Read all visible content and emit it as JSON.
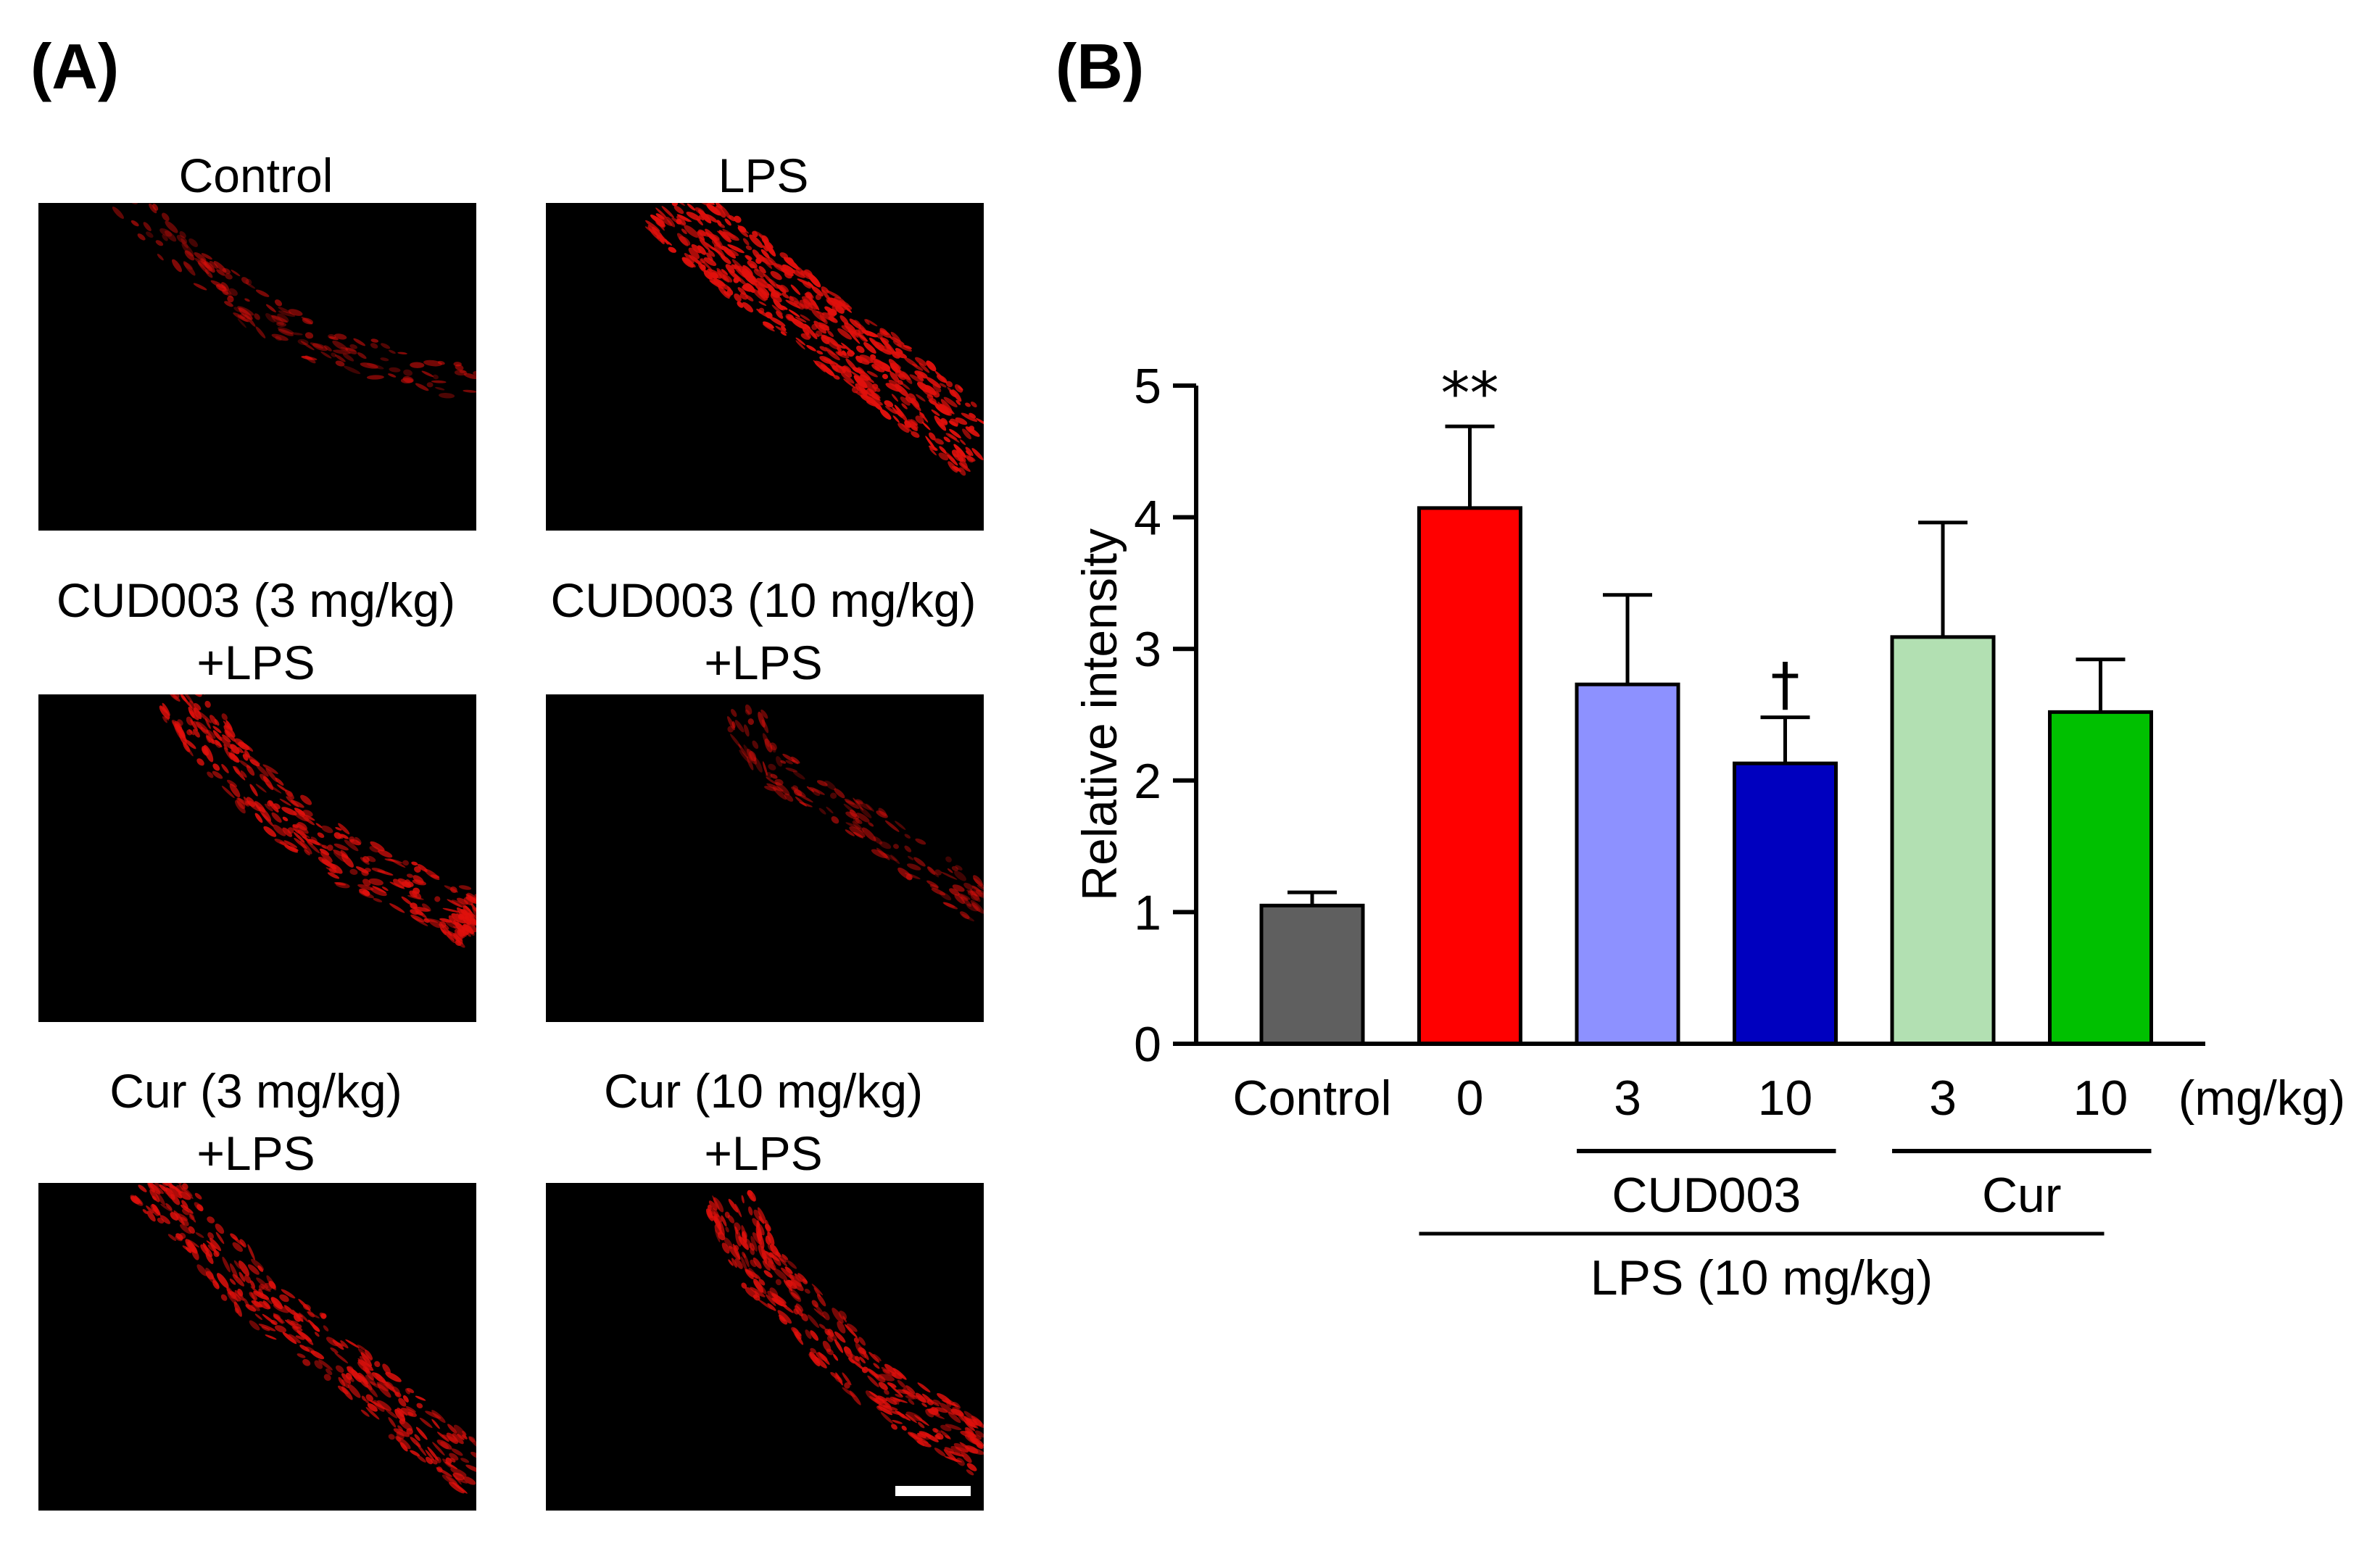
{
  "panels": {
    "a_label": "(A)",
    "b_label": "(B)"
  },
  "micrographs": [
    {
      "title": "Control",
      "title_line2": "",
      "signal": "weak"
    },
    {
      "title": "LPS",
      "title_line2": "",
      "signal": "strong"
    },
    {
      "title": "CUD003 (3 mg/kg)",
      "title_line2": "+LPS",
      "signal": "moderate"
    },
    {
      "title": "CUD003 (10 mg/kg)",
      "title_line2": "+LPS",
      "signal": "weak"
    },
    {
      "title": "Cur (3 mg/kg)",
      "title_line2": "+LPS",
      "signal": "moderate"
    },
    {
      "title": "Cur (10 mg/kg)",
      "title_line2": "+LPS",
      "signal": "moderate"
    }
  ],
  "colors": {
    "fluorescence": "#e0100c",
    "background": "#000000",
    "bars": [
      "#5f5f5f",
      "#ff0000",
      "#8d91ff",
      "#0000bf",
      "#b2e0b2",
      "#00c000"
    ]
  },
  "chart_data": {
    "type": "bar",
    "ylabel": "Relative intensity",
    "ylim": [
      0,
      5
    ],
    "yticks": [
      0,
      1,
      2,
      3,
      4,
      5
    ],
    "categories": [
      "Control",
      "0",
      "3",
      "10",
      "3",
      "10"
    ],
    "values": [
      1.05,
      4.07,
      2.73,
      2.13,
      3.09,
      2.52
    ],
    "errors": [
      0.1,
      0.62,
      0.68,
      0.35,
      0.87,
      0.4
    ],
    "annotations": [
      "",
      "**",
      "",
      "†",
      "",
      ""
    ],
    "unit_label": "(mg/kg)",
    "groups": [
      {
        "label": "CUD003",
        "from": 2,
        "to": 3
      },
      {
        "label": "Cur",
        "from": 4,
        "to": 5
      }
    ],
    "treatment": {
      "label": "LPS (10 mg/kg)",
      "from": 1,
      "to": 5
    }
  }
}
